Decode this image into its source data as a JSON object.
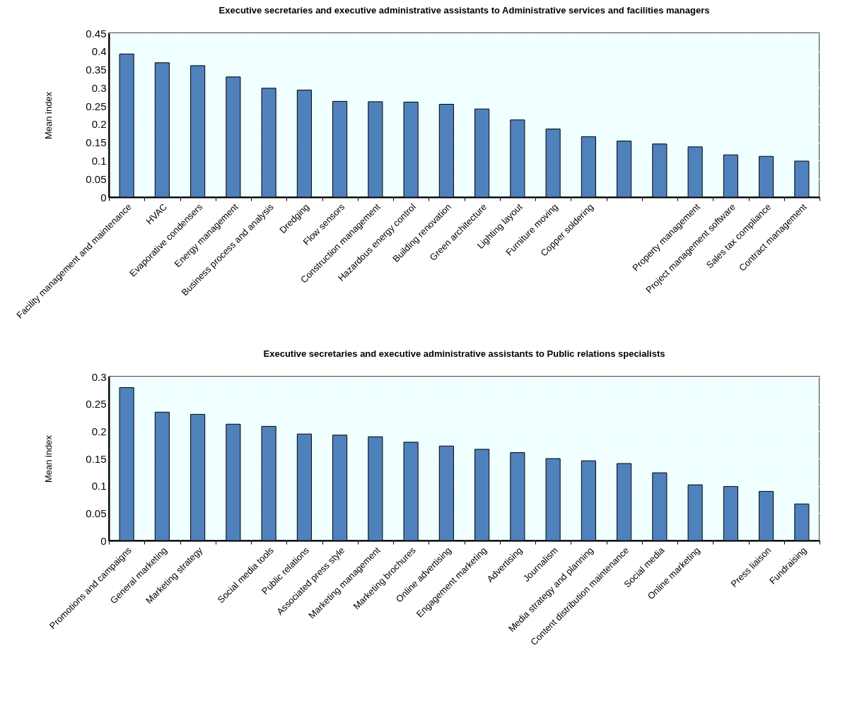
{
  "chart_data": [
    {
      "type": "bar",
      "title": "Executive secretaries and executive administrative assistants  to Administrative services and facilities managers",
      "ylabel": "Mean index",
      "categories": [
        "Facility management and maintenance",
        "HVAC",
        "Evaporative condensers",
        "Energy management",
        "Business process and analysis",
        "Dredging",
        "Flow sensors",
        "Construction management",
        "Hazardous energy control",
        "Building renovation",
        "Green architecture",
        "Lighting layout",
        "Furniture moving",
        "Copper soldering",
        null,
        null,
        "Property management",
        "Project management software",
        "Sales tax compliance",
        "Contract management"
      ],
      "values": [
        0.393,
        0.369,
        0.361,
        0.33,
        0.299,
        0.294,
        0.263,
        0.262,
        0.261,
        0.255,
        0.242,
        0.212,
        0.187,
        0.166,
        0.154,
        0.146,
        0.138,
        0.116,
        0.112,
        0.099
      ],
      "color": "#4f81bd",
      "ylim": [
        0,
        0.45
      ],
      "yticks": [
        0,
        0.05,
        0.1,
        0.15,
        0.2,
        0.25,
        0.3,
        0.35,
        0.4,
        0.45
      ],
      "grid": true
    },
    {
      "type": "bar",
      "title": "Executive secretaries and executive administrative assistants to  Public relations specialists",
      "ylabel": "Mean index",
      "categories": [
        "Promotions and campaigns",
        "General marketing",
        "Marketing strategy",
        null,
        "Social media tools",
        "Public relations",
        "Associated press style",
        "Marketing management",
        "Marketing brochures",
        "Online advertising",
        "Engagement marketing",
        "Advertising",
        "Journalism",
        "Media strategy and planning",
        "Content distribution maintenance",
        "Social media",
        "Online marketing",
        null,
        "Press liaison",
        "Fundraising"
      ],
      "values": [
        0.28,
        0.235,
        0.231,
        0.213,
        0.209,
        0.195,
        0.193,
        0.19,
        0.18,
        0.173,
        0.167,
        0.161,
        0.15,
        0.146,
        0.141,
        0.124,
        0.102,
        0.099,
        0.09,
        0.067
      ],
      "color": "#4f81bd",
      "ylim": [
        0,
        0.3
      ],
      "yticks": [
        0,
        0.05,
        0.1,
        0.15,
        0.2,
        0.25,
        0.3
      ],
      "grid": true
    }
  ]
}
